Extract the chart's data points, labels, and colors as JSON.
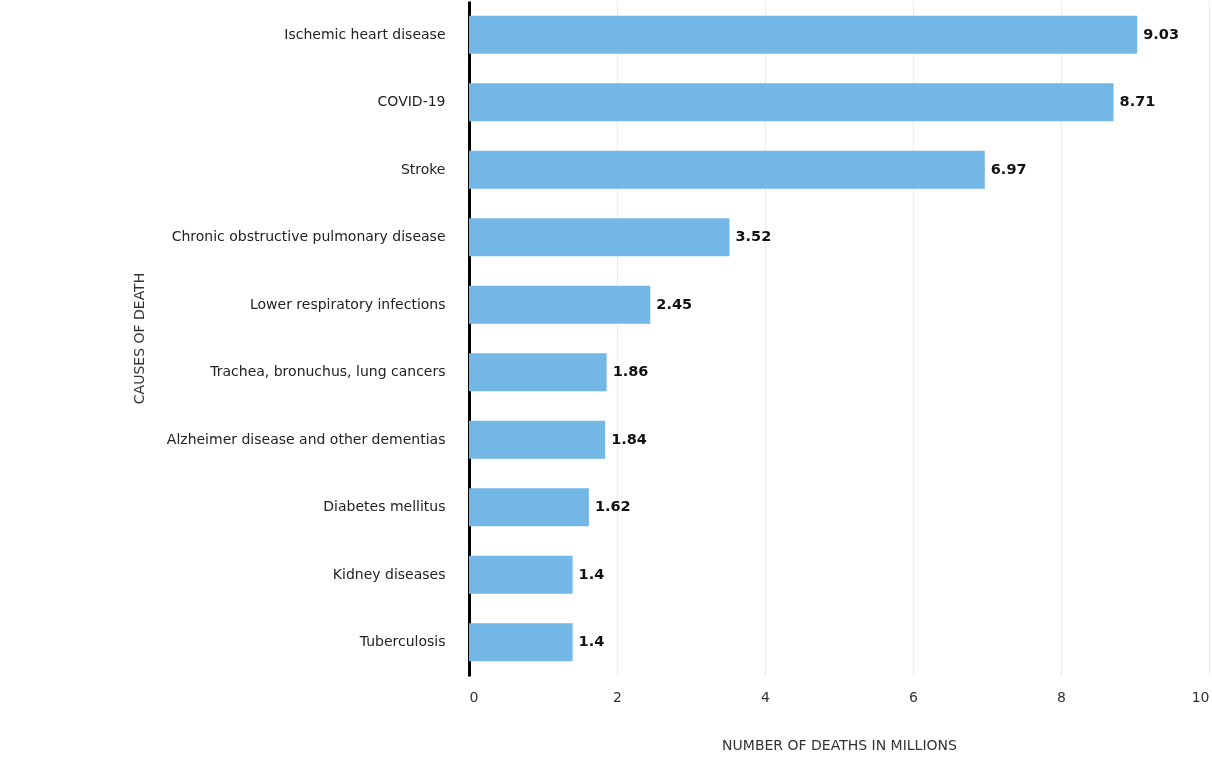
{
  "chart_data": {
    "type": "bar",
    "orientation": "horizontal",
    "xlabel": "NUMBER OF DEATHS IN MILLIONS",
    "ylabel": "CAUSES OF DEATH",
    "categories": [
      "Ischemic heart disease",
      "COVID-19",
      "Stroke",
      "Chronic obstructive pulmonary disease",
      "Lower respiratory infections",
      "Trachea, bronuchus, lung cancers",
      "Alzheimer disease and other dementias",
      "Diabetes mellitus",
      "Kidney diseases",
      "Tuberculosis"
    ],
    "values": [
      9.03,
      8.71,
      6.97,
      3.52,
      2.45,
      1.86,
      1.84,
      1.62,
      1.4,
      1.4
    ],
    "color": "#72b7e5",
    "xlim": [
      0,
      10
    ],
    "xticks": [
      0,
      2,
      4,
      6,
      8,
      10
    ],
    "grid": "x",
    "data_labels": true
  }
}
